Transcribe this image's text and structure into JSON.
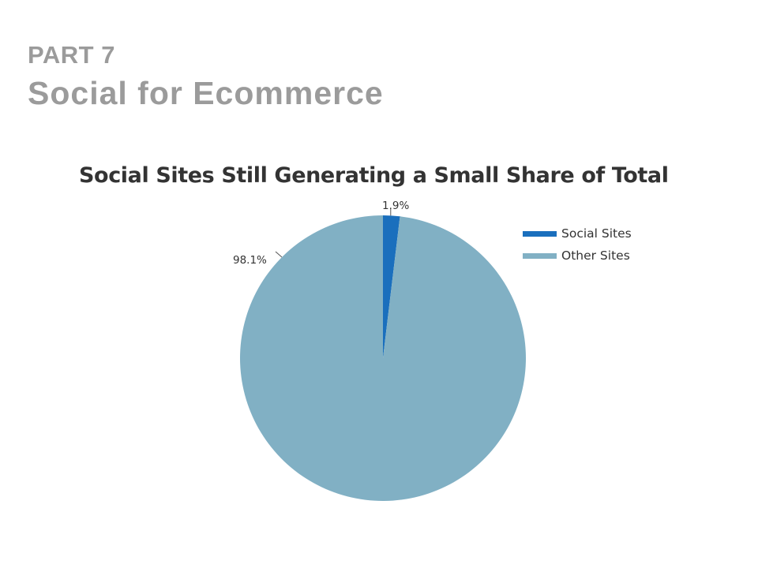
{
  "slide": {
    "part_label": "PART 7",
    "title": "Social for Ecommerce"
  },
  "colors": {
    "heading_gray": "#9b9b9b",
    "social": "#1a6fbd",
    "other": "#81b0c4"
  },
  "chart_data": {
    "type": "pie",
    "title": "Social Sites Still Generating a Small Share of Total",
    "legend_position": "right",
    "slices": [
      {
        "name": "Social Sites",
        "value": 1.9,
        "label": "1.9%",
        "color": "#1a6fbd"
      },
      {
        "name": "Other Sites",
        "value": 98.1,
        "label": "98.1%",
        "color": "#81b0c4"
      }
    ]
  }
}
